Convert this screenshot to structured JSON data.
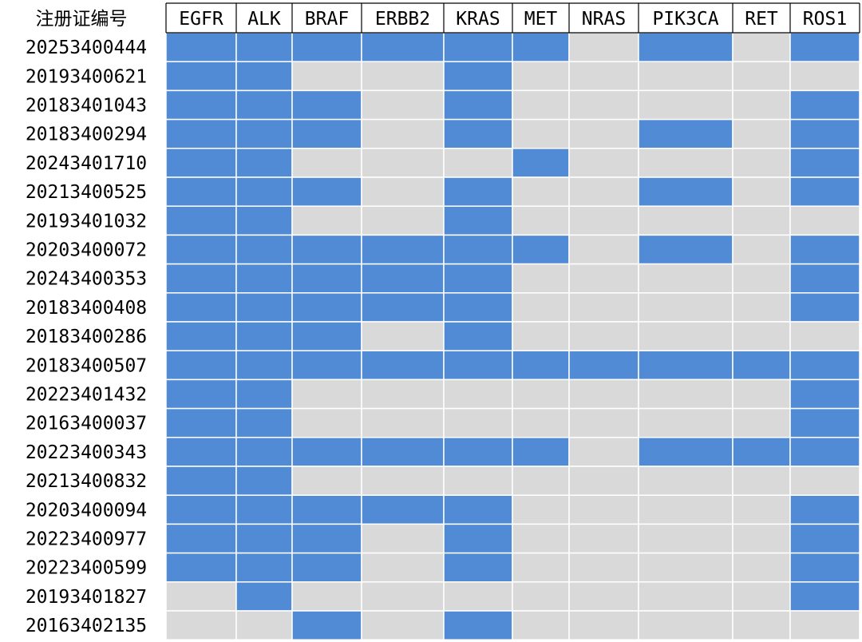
{
  "chart_data": {
    "type": "heatmap",
    "title": "",
    "corner_label": "注册证编号",
    "columns": [
      "EGFR",
      "ALK",
      "BRAF",
      "ERBB2",
      "KRAS",
      "MET",
      "NRAS",
      "PIK3CA",
      "RET",
      "ROS1"
    ],
    "rows": [
      "20253400444",
      "20193400621",
      "20183401043",
      "20183400294",
      "20243401710",
      "20213400525",
      "20193401032",
      "20203400072",
      "20243400353",
      "20183400408",
      "20183400286",
      "20183400507",
      "20223401432",
      "20163400037",
      "20223400343",
      "20213400832",
      "20203400094",
      "20223400977",
      "20223400599",
      "20193401827",
      "20163402135"
    ],
    "values": [
      [
        1,
        1,
        1,
        1,
        1,
        1,
        0,
        1,
        0,
        1
      ],
      [
        1,
        1,
        0,
        0,
        1,
        0,
        0,
        0,
        0,
        0
      ],
      [
        1,
        1,
        1,
        0,
        1,
        0,
        0,
        0,
        0,
        1
      ],
      [
        1,
        1,
        1,
        0,
        1,
        0,
        0,
        1,
        0,
        1
      ],
      [
        1,
        1,
        0,
        0,
        0,
        1,
        0,
        0,
        0,
        1
      ],
      [
        1,
        1,
        1,
        0,
        1,
        0,
        0,
        1,
        0,
        1
      ],
      [
        1,
        1,
        0,
        0,
        1,
        0,
        0,
        0,
        0,
        0
      ],
      [
        1,
        1,
        1,
        1,
        1,
        1,
        0,
        1,
        0,
        1
      ],
      [
        1,
        1,
        1,
        1,
        1,
        0,
        0,
        0,
        0,
        1
      ],
      [
        1,
        1,
        1,
        1,
        1,
        0,
        0,
        0,
        0,
        1
      ],
      [
        1,
        1,
        1,
        0,
        1,
        0,
        0,
        0,
        0,
        0
      ],
      [
        1,
        1,
        1,
        1,
        1,
        1,
        1,
        1,
        1,
        1
      ],
      [
        1,
        1,
        0,
        0,
        0,
        0,
        0,
        0,
        0,
        1
      ],
      [
        1,
        1,
        0,
        0,
        0,
        0,
        0,
        0,
        0,
        1
      ],
      [
        1,
        1,
        1,
        1,
        1,
        1,
        0,
        1,
        1,
        1
      ],
      [
        1,
        1,
        0,
        0,
        0,
        0,
        0,
        0,
        0,
        0
      ],
      [
        1,
        1,
        1,
        1,
        1,
        0,
        0,
        0,
        0,
        1
      ],
      [
        1,
        1,
        1,
        0,
        1,
        0,
        0,
        0,
        0,
        1
      ],
      [
        1,
        1,
        1,
        0,
        1,
        0,
        0,
        0,
        0,
        1
      ],
      [
        0,
        1,
        0,
        0,
        0,
        0,
        0,
        0,
        0,
        1
      ],
      [
        0,
        0,
        1,
        0,
        1,
        0,
        0,
        0,
        0,
        0
      ]
    ],
    "colors": {
      "on": "#528bd5",
      "off": "#d9d9d9",
      "grid": "#ffffff"
    },
    "legend": "none"
  }
}
